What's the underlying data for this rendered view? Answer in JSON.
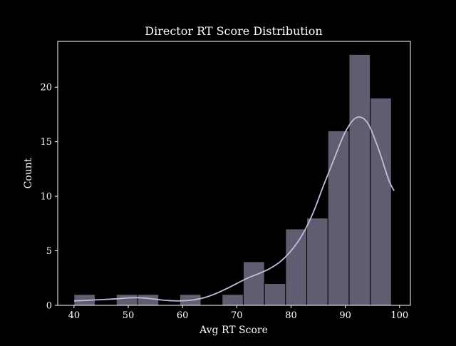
{
  "chart_data": {
    "type": "bar",
    "title": "Director RT Score Distribution",
    "xlabel": "Avg RT Score",
    "ylabel": "Count",
    "xlim": [
      37,
      102
    ],
    "ylim": [
      0,
      24.2
    ],
    "xticks": [
      40,
      50,
      60,
      70,
      80,
      90,
      100
    ],
    "yticks": [
      0,
      5,
      10,
      15,
      20
    ],
    "bin_edges": [
      40.0,
      43.9,
      47.8,
      51.7,
      55.6,
      59.5,
      63.4,
      67.3,
      71.2,
      75.1,
      79.0,
      82.9,
      86.8,
      90.7,
      94.6,
      98.5
    ],
    "series": [
      {
        "values": [
          1,
          0,
          1,
          1,
          0,
          1,
          0,
          1,
          4,
          2,
          7,
          8,
          16,
          23,
          19
        ]
      }
    ],
    "kde": {
      "x": [
        40,
        42,
        44,
        46,
        48,
        50,
        52,
        54,
        56,
        58,
        60,
        62,
        64,
        66,
        68,
        70,
        72,
        74,
        76,
        78,
        80,
        82,
        84,
        86,
        88,
        90,
        92,
        94,
        96,
        98,
        99
      ],
      "y": [
        0.4,
        0.45,
        0.5,
        0.55,
        0.6,
        0.68,
        0.7,
        0.62,
        0.5,
        0.42,
        0.42,
        0.5,
        0.7,
        1.05,
        1.5,
        2.0,
        2.5,
        2.9,
        3.35,
        4.0,
        5.0,
        6.4,
        8.4,
        11.0,
        13.5,
        15.9,
        17.2,
        16.8,
        14.5,
        11.5,
        10.5
      ]
    },
    "grid": false,
    "legend": "none",
    "colors": {
      "bar_fill": "#5f5d6f",
      "bar_edge": "#000000",
      "kde_line": "#c0bfe0",
      "axis": "#ffffff",
      "background": "#000000"
    }
  }
}
